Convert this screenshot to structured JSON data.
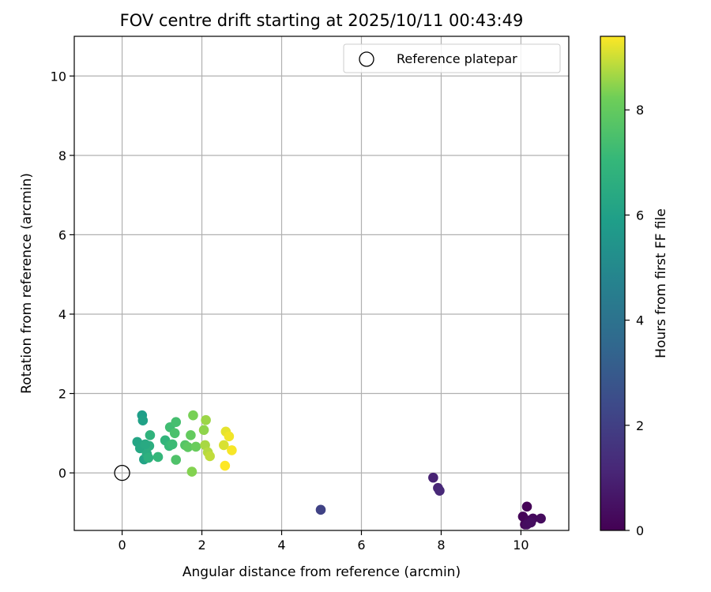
{
  "chart_data": {
    "type": "scatter",
    "title": "FOV centre drift starting at 2025/10/11 00:43:49",
    "xlabel": "Angular distance from reference (arcmin)",
    "ylabel": "Rotation from reference (arcmin)",
    "xlim": [
      -1.2,
      11.2
    ],
    "ylim": [
      -1.45,
      11.0
    ],
    "xticks": [
      0,
      2,
      4,
      6,
      8,
      10
    ],
    "yticks": [
      0,
      2,
      4,
      6,
      8,
      10
    ],
    "grid": true,
    "legend": {
      "placement": "top-right",
      "entries": [
        "Reference platepar"
      ]
    },
    "reference_point": {
      "x": 0,
      "y": 0,
      "label": "Reference platepar"
    },
    "colorbar": {
      "label": "Hours from first FF file",
      "colormap": "viridis",
      "range": [
        0,
        9.4
      ],
      "ticks": [
        0,
        2,
        4,
        6,
        8
      ]
    },
    "points": [
      {
        "x": 10.15,
        "y": -0.85,
        "h": 0.05
      },
      {
        "x": 10.05,
        "y": -1.1,
        "h": 0.1
      },
      {
        "x": 10.1,
        "y": -1.3,
        "h": 0.15
      },
      {
        "x": 10.2,
        "y": -1.2,
        "h": 0.2
      },
      {
        "x": 10.3,
        "y": -1.15,
        "h": 0.25
      },
      {
        "x": 10.5,
        "y": -1.15,
        "h": 0.3
      },
      {
        "x": 10.15,
        "y": -1.3,
        "h": 0.35
      },
      {
        "x": 10.25,
        "y": -1.25,
        "h": 0.4
      },
      {
        "x": 7.8,
        "y": -0.12,
        "h": 1.0
      },
      {
        "x": 7.92,
        "y": -0.38,
        "h": 1.1
      },
      {
        "x": 7.96,
        "y": -0.45,
        "h": 1.2
      },
      {
        "x": 4.98,
        "y": -0.93,
        "h": 2.1
      },
      {
        "x": 0.5,
        "y": 1.45,
        "h": 5.9
      },
      {
        "x": 0.52,
        "y": 1.32,
        "h": 6.0
      },
      {
        "x": 0.38,
        "y": 0.78,
        "h": 6.2
      },
      {
        "x": 0.45,
        "y": 0.62,
        "h": 6.3
      },
      {
        "x": 0.55,
        "y": 0.34,
        "h": 6.1
      },
      {
        "x": 0.62,
        "y": 0.48,
        "h": 6.5
      },
      {
        "x": 0.68,
        "y": 0.68,
        "h": 6.6
      },
      {
        "x": 0.58,
        "y": 0.72,
        "h": 6.4
      },
      {
        "x": 0.7,
        "y": 0.95,
        "h": 6.8
      },
      {
        "x": 0.66,
        "y": 0.38,
        "h": 6.7
      },
      {
        "x": 0.9,
        "y": 0.4,
        "h": 7.0
      },
      {
        "x": 1.08,
        "y": 0.82,
        "h": 6.9
      },
      {
        "x": 1.2,
        "y": 1.15,
        "h": 7.3
      },
      {
        "x": 1.18,
        "y": 0.68,
        "h": 7.1
      },
      {
        "x": 1.26,
        "y": 0.72,
        "h": 7.2
      },
      {
        "x": 1.32,
        "y": 1.0,
        "h": 7.5
      },
      {
        "x": 1.35,
        "y": 1.28,
        "h": 7.4
      },
      {
        "x": 1.35,
        "y": 0.33,
        "h": 7.6
      },
      {
        "x": 1.58,
        "y": 0.7,
        "h": 7.7
      },
      {
        "x": 1.65,
        "y": 0.65,
        "h": 7.9
      },
      {
        "x": 1.72,
        "y": 0.95,
        "h": 8.0
      },
      {
        "x": 1.78,
        "y": 1.45,
        "h": 8.3
      },
      {
        "x": 1.75,
        "y": 0.03,
        "h": 8.4
      },
      {
        "x": 1.85,
        "y": 0.66,
        "h": 8.1
      },
      {
        "x": 2.05,
        "y": 1.08,
        "h": 8.5
      },
      {
        "x": 2.1,
        "y": 1.33,
        "h": 8.6
      },
      {
        "x": 2.08,
        "y": 0.7,
        "h": 8.7
      },
      {
        "x": 2.15,
        "y": 0.52,
        "h": 8.8
      },
      {
        "x": 2.2,
        "y": 0.42,
        "h": 8.9
      },
      {
        "x": 2.55,
        "y": 0.7,
        "h": 9.1
      },
      {
        "x": 2.6,
        "y": 1.04,
        "h": 9.2
      },
      {
        "x": 2.68,
        "y": 0.92,
        "h": 9.3
      },
      {
        "x": 2.75,
        "y": 0.57,
        "h": 9.35
      },
      {
        "x": 2.58,
        "y": 0.18,
        "h": 9.4
      }
    ]
  }
}
